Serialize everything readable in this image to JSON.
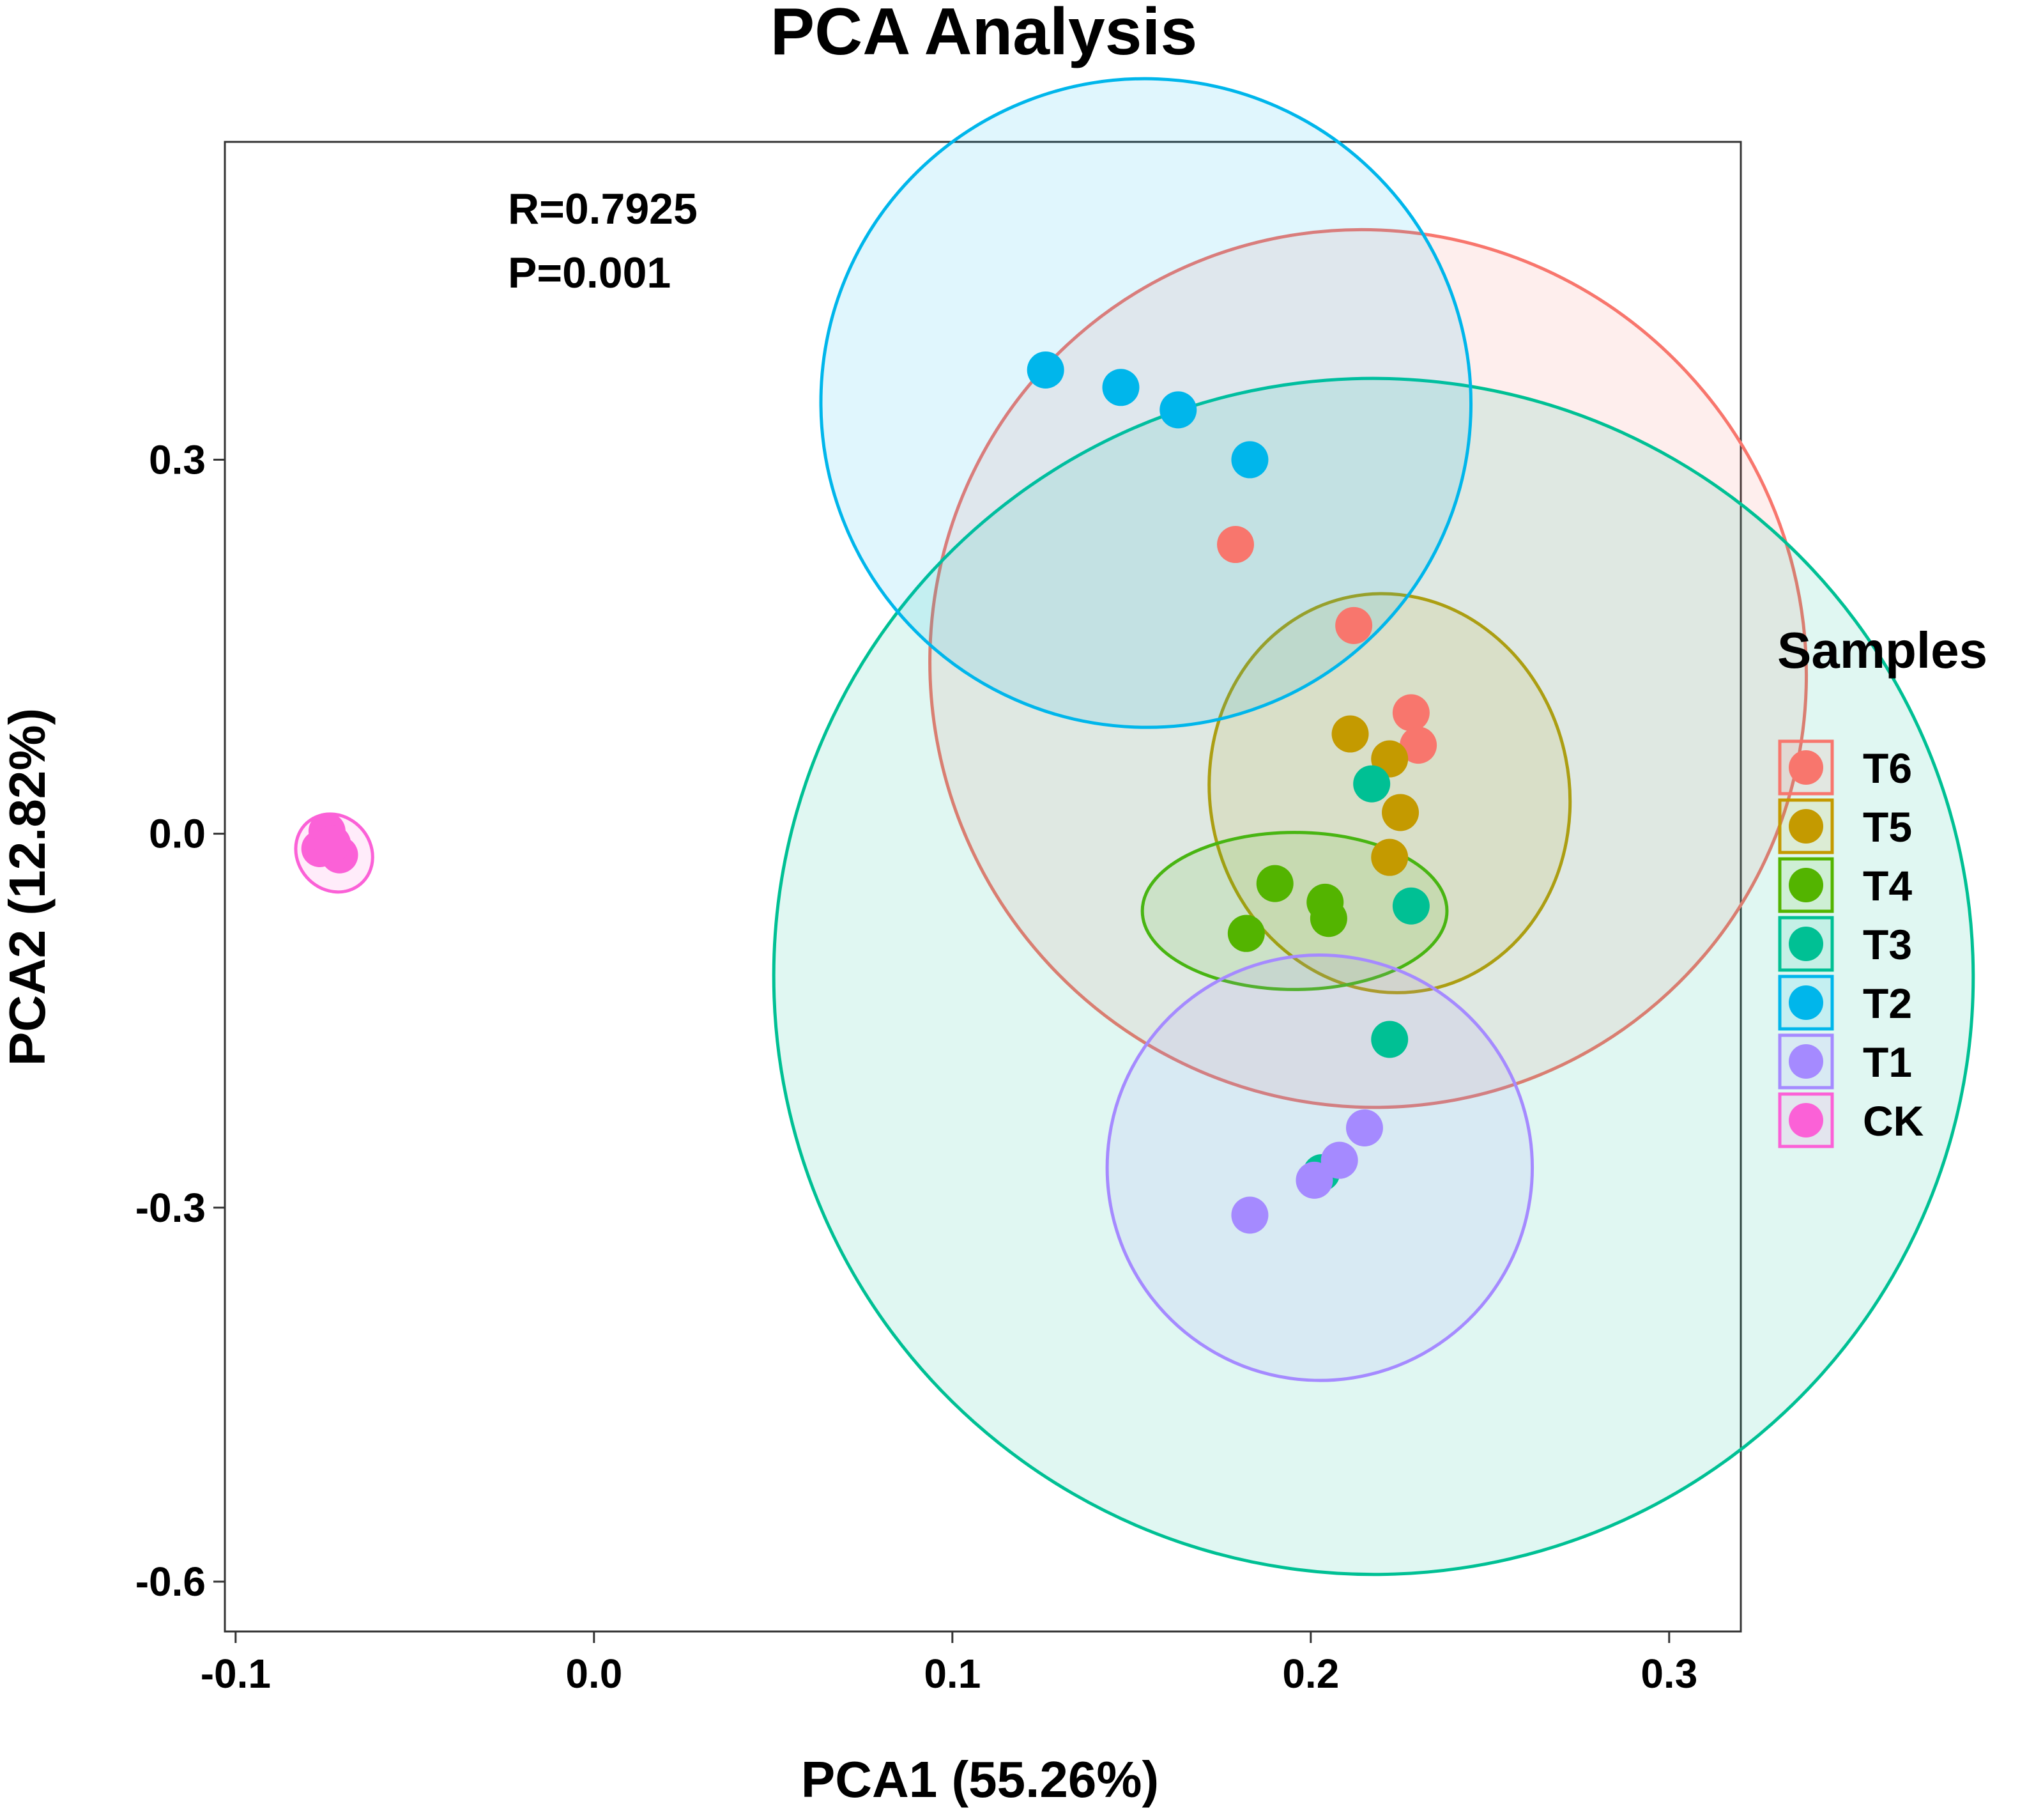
{
  "chart_data": {
    "type": "scatter",
    "title": "PCA Analysis",
    "xlabel": "PCA1 (55.26%)",
    "ylabel": "PCA2 (12.82%)",
    "xlim": [
      -0.103,
      0.32
    ],
    "ylim": [
      -0.64,
      0.555
    ],
    "x_ticks": [
      -0.1,
      0.0,
      0.1,
      0.2,
      0.3
    ],
    "x_tick_labels": [
      "-0.1",
      "0.0",
      "0.1",
      "0.2",
      "0.3"
    ],
    "y_ticks": [
      -0.6,
      -0.3,
      0.0,
      0.3
    ],
    "y_tick_labels": [
      "-0.6",
      "-0.3",
      "0.0",
      "0.3"
    ],
    "grid": false,
    "annotations": [
      "R=0.7925",
      "P=0.001"
    ],
    "legend": {
      "title": "Samples",
      "position": "right"
    },
    "series": [
      {
        "name": "T6",
        "color": "#F8766D",
        "points": [
          [
            0.179,
            0.232
          ],
          [
            0.212,
            0.167
          ],
          [
            0.228,
            0.097
          ],
          [
            0.23,
            0.071
          ]
        ],
        "ellipse": [
          [
            0.132,
            0.392
          ],
          [
            0.3,
            -0.127
          ],
          [
            0.134,
            0.39
          ],
          [
            0.298,
            -0.125
          ]
        ]
      },
      {
        "name": "T5",
        "color": "#C49A00",
        "points": [
          [
            0.211,
            0.08
          ],
          [
            0.222,
            0.06
          ],
          [
            0.225,
            0.017
          ],
          [
            0.222,
            -0.019
          ]
        ],
        "ellipse": [
          [
            0.211,
            0.19
          ],
          [
            0.233,
            -0.125
          ],
          [
            0.205,
            0.167
          ],
          [
            0.241,
            -0.102
          ]
        ]
      },
      {
        "name": "T4",
        "color": "#53B400",
        "points": [
          [
            0.19,
            -0.04
          ],
          [
            0.204,
            -0.055
          ],
          [
            0.205,
            -0.068
          ],
          [
            0.182,
            -0.08
          ]
        ],
        "ellipse": [
          [
            0.153,
            -0.062
          ],
          [
            0.238,
            -0.062
          ],
          [
            0.196,
            0.001
          ],
          [
            0.196,
            -0.125
          ]
        ]
      },
      {
        "name": "T3",
        "color": "#00C094",
        "points": [
          [
            0.217,
            0.04
          ],
          [
            0.228,
            -0.058
          ],
          [
            0.222,
            -0.165
          ],
          [
            0.203,
            -0.272
          ]
        ],
        "ellipse": [
          [
            0.242,
            0.36
          ],
          [
            0.193,
            -0.589
          ],
          [
            0.232,
            0.365
          ],
          [
            0.203,
            -0.594
          ]
        ]
      },
      {
        "name": "T2",
        "color": "#00B6EB",
        "points": [
          [
            0.126,
            0.372
          ],
          [
            0.147,
            0.358
          ],
          [
            0.163,
            0.34
          ],
          [
            0.183,
            0.3
          ]
        ],
        "ellipse": [
          [
            0.071,
            0.451
          ],
          [
            0.237,
            0.24
          ],
          [
            0.072,
            0.455
          ],
          [
            0.236,
            0.236
          ]
        ]
      },
      {
        "name": "T1",
        "color": "#A58AFF",
        "points": [
          [
            0.183,
            -0.306
          ],
          [
            0.201,
            -0.278
          ],
          [
            0.208,
            -0.262
          ],
          [
            0.215,
            -0.236
          ]
        ],
        "ellipse": [
          [
            0.25,
            -0.166
          ],
          [
            0.155,
            -0.37
          ],
          [
            0.249,
            -0.162
          ],
          [
            0.156,
            -0.374
          ]
        ]
      },
      {
        "name": "CK",
        "color": "#FB61D7",
        "points": [
          [
            -0.0745,
            0.002
          ],
          [
            -0.0765,
            -0.012
          ],
          [
            -0.071,
            -0.017
          ],
          [
            -0.073,
            -0.008
          ]
        ],
        "ellipse": [
          [
            -0.08,
            0.009
          ],
          [
            -0.065,
            -0.04
          ],
          [
            -0.075,
            0.013
          ],
          [
            -0.07,
            -0.044
          ]
        ]
      }
    ]
  }
}
